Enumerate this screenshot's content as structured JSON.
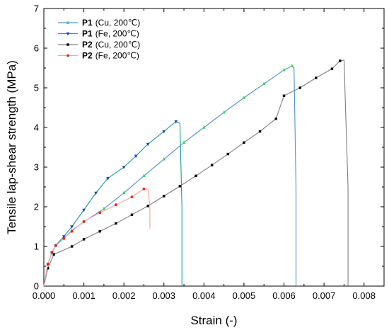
{
  "chart_data": {
    "type": "line",
    "xlabel": "Strain (-)",
    "ylabel": "Tensile lap-shear strength (MPa)",
    "xlim": [
      0,
      0.0085
    ],
    "ylim": [
      0,
      7
    ],
    "xticks": [
      "0.000",
      "0.001",
      "0.002",
      "0.003",
      "0.004",
      "0.005",
      "0.006",
      "0.007",
      "0.008"
    ],
    "yticks": [
      "0",
      "1",
      "2",
      "3",
      "4",
      "5",
      "6",
      "7"
    ],
    "grid": false,
    "legend_position": "top-left",
    "series": [
      {
        "name": "P1",
        "condition": "(Cu, 200℃)",
        "color": "#4a90d9",
        "marker_color": "#3cd94a",
        "marker": "triangle-up",
        "x": [
          0,
          0.0001,
          0.0002,
          0.0003,
          0.0005,
          0.0007,
          0.001,
          0.0015,
          0.002,
          0.0025,
          0.003,
          0.0035,
          0.004,
          0.0045,
          0.005,
          0.0055,
          0.006,
          0.0062,
          0.00625,
          0.0063,
          0.0063
        ],
        "y": [
          0,
          0.55,
          0.85,
          1.02,
          1.2,
          1.4,
          1.62,
          1.95,
          2.35,
          2.78,
          3.2,
          3.62,
          4.0,
          4.38,
          4.75,
          5.1,
          5.45,
          5.55,
          5.5,
          2.5,
          0
        ]
      },
      {
        "name": "P1",
        "condition": "(Fe, 200℃)",
        "color": "#1a9e8f",
        "marker_color": "#1f3fbf",
        "marker": "triangle-down",
        "x": [
          0,
          0.0001,
          0.0002,
          0.0003,
          0.0005,
          0.0007,
          0.001,
          0.0013,
          0.0016,
          0.002,
          0.0023,
          0.0026,
          0.003,
          0.0033,
          0.0034,
          0.00345,
          0.00345
        ],
        "y": [
          0,
          0.55,
          0.85,
          1.03,
          1.25,
          1.5,
          1.92,
          2.35,
          2.72,
          3.0,
          3.28,
          3.58,
          3.9,
          4.15,
          4.1,
          2.0,
          0
        ]
      },
      {
        "name": "P2",
        "condition": "(Cu, 200℃)",
        "color": "#7f7f7f",
        "marker_color": "#000000",
        "marker": "square",
        "x": [
          0,
          0.0001,
          0.00025,
          0.0007,
          0.001,
          0.0014,
          0.0018,
          0.0022,
          0.0026,
          0.003,
          0.0034,
          0.0038,
          0.0042,
          0.0046,
          0.005,
          0.0054,
          0.0058,
          0.006,
          0.0064,
          0.0068,
          0.0072,
          0.0074,
          0.0075,
          0.0076,
          0.0076
        ],
        "y": [
          0,
          0.45,
          0.8,
          1.0,
          1.18,
          1.38,
          1.58,
          1.8,
          2.02,
          2.27,
          2.52,
          2.78,
          3.05,
          3.33,
          3.62,
          3.9,
          4.22,
          4.8,
          5.0,
          5.25,
          5.48,
          5.68,
          5.7,
          2.5,
          0
        ]
      },
      {
        "name": "P2",
        "condition": "(Fe, 200℃)",
        "color": "#f5a3a3",
        "marker_color": "#e8231f",
        "marker": "circle",
        "x": [
          0,
          0.0001,
          0.0002,
          0.0003,
          0.0005,
          0.0007,
          0.001,
          0.0014,
          0.0018,
          0.0022,
          0.0025,
          0.0026,
          0.00265,
          0.00265
        ],
        "y": [
          0,
          0.55,
          0.85,
          1.02,
          1.2,
          1.38,
          1.63,
          1.85,
          2.05,
          2.25,
          2.45,
          2.45,
          2.0,
          1.45
        ]
      }
    ]
  }
}
